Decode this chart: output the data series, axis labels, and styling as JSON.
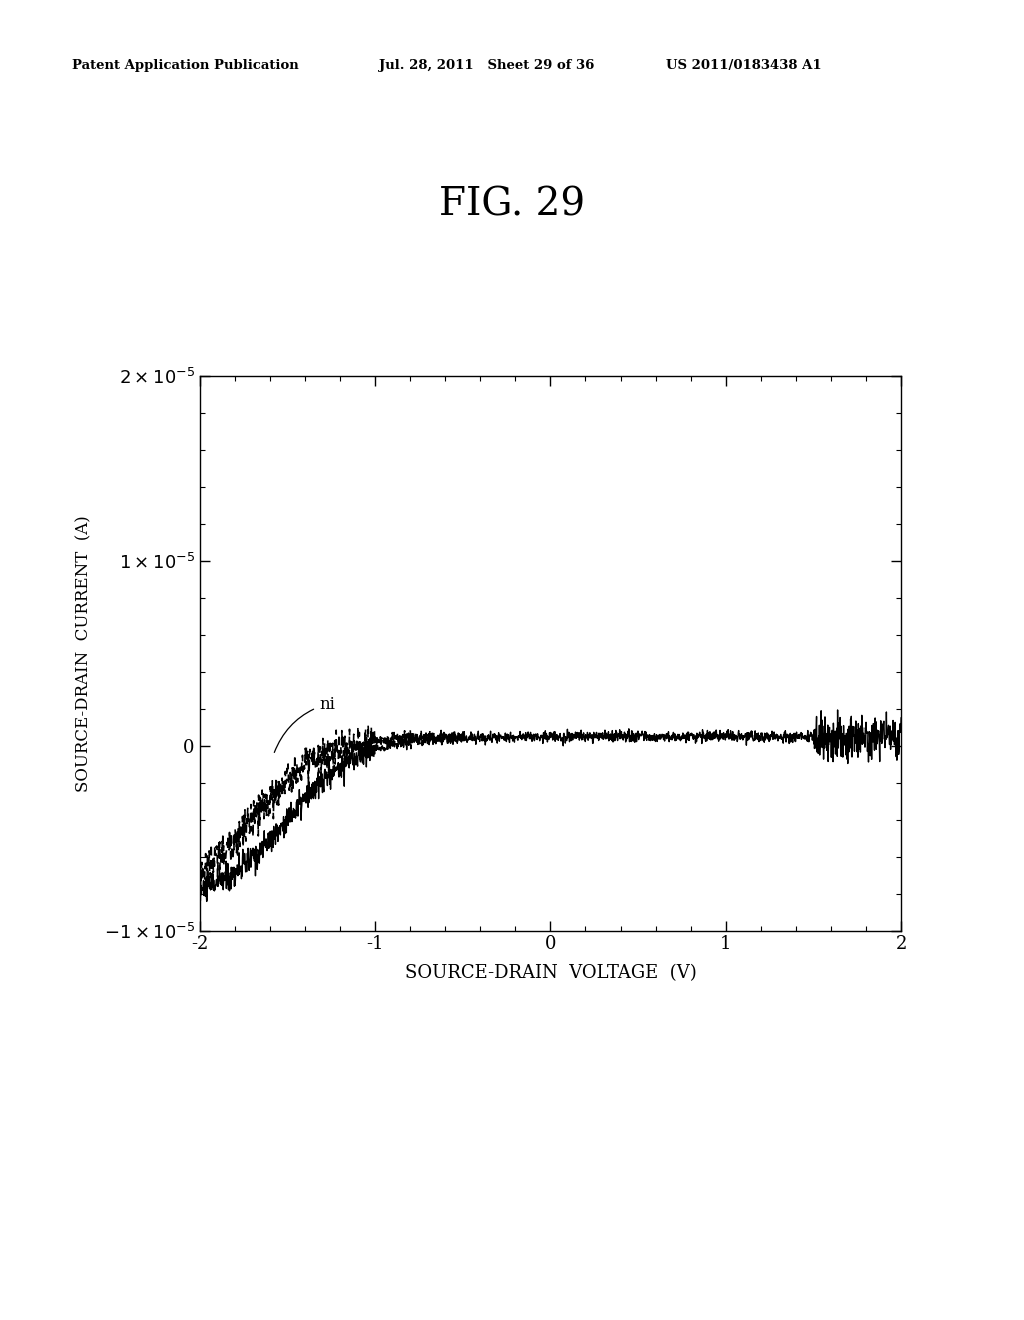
{
  "title": "FIG. 29",
  "xlabel": "SOURCE-DRAIN  VOLTAGE  (V)",
  "ylabel": "SOURCE-DRAIN  CURRENT  (A)",
  "xlim": [
    -2,
    2
  ],
  "ylim": [
    -1e-05,
    2e-05
  ],
  "yticks": [
    -1e-05,
    0,
    1e-05,
    2e-05
  ],
  "xticks": [
    -2,
    -1,
    0,
    1,
    2
  ],
  "annotation_text": "ni",
  "header_left": "Patent Application Publication",
  "header_mid": "Jul. 28, 2011   Sheet 29 of 36",
  "header_right": "US 2011/0183438 A1",
  "bg_color": "#ffffff"
}
